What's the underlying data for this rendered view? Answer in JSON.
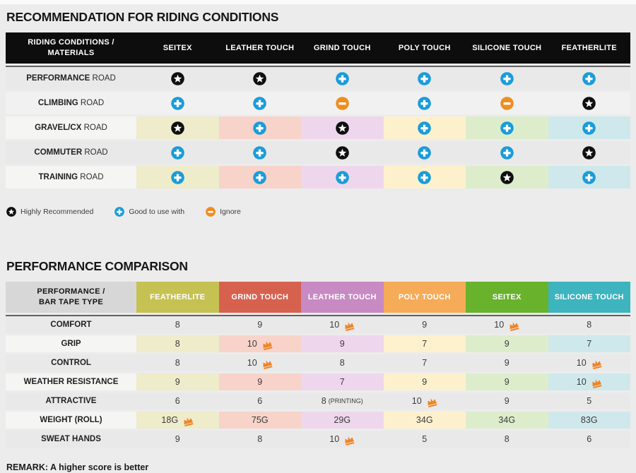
{
  "page": {
    "title1": "RECOMMENDATION FOR RIDING CONDITIONS",
    "title2": "PERFORMANCE COMPARISON",
    "remark": "REMARK: A higher score is better"
  },
  "colors": {
    "star_black": "#0f0f0f",
    "plus_blue": "#1b9cd9",
    "minus_orange": "#ef8d21",
    "crown_orange": "#f08426",
    "row_dark": "#e9e9e9",
    "row_light": "#f1f1f1",
    "label_light": "#f5f5f4",
    "tints": [
      "#eeecca",
      "#f8d3c9",
      "#eed7ec",
      "#fdf1cd",
      "#ddedcc",
      "#cfe8eb"
    ]
  },
  "legend": [
    {
      "icon": "star",
      "label": "Highly Recommended"
    },
    {
      "icon": "plus",
      "label": "Good to use with"
    },
    {
      "icon": "minus",
      "label": "Ignore"
    }
  ],
  "icon_meanings": {
    "star": "Highly Recommended",
    "plus": "Good to use with",
    "minus": "Ignore"
  },
  "chart_data": [
    {
      "type": "table",
      "title": "RECOMMENDATION FOR RIDING CONDITIONS",
      "corner_label": "RIDING CONDITIONS /\nMATERIALS",
      "columns": [
        "SEITEX",
        "LEATHER TOUCH",
        "GRIND TOUCH",
        "POLY TOUCH",
        "SILICONE TOUCH",
        "FEATHERLITE"
      ],
      "rows": [
        {
          "label": "PERFORMANCE",
          "suffix": "ROAD",
          "tinted": false,
          "light": false,
          "cells": [
            "star",
            "star",
            "plus",
            "plus",
            "plus",
            "plus"
          ]
        },
        {
          "label": "CLIMBING",
          "suffix": "ROAD",
          "tinted": false,
          "light": true,
          "cells": [
            "plus",
            "plus",
            "minus",
            "plus",
            "minus",
            "star"
          ]
        },
        {
          "label": "GRAVEL/CX",
          "suffix": "ROAD",
          "tinted": true,
          "light": false,
          "cells": [
            "star",
            "plus",
            "star",
            "plus",
            "plus",
            "plus"
          ]
        },
        {
          "label": "COMMUTER",
          "suffix": "ROAD",
          "tinted": false,
          "light": false,
          "cells": [
            "plus",
            "plus",
            "star",
            "plus",
            "plus",
            "star"
          ]
        },
        {
          "label": "TRAINING",
          "suffix": "ROAD",
          "tinted": true,
          "light": false,
          "cells": [
            "plus",
            "plus",
            "plus",
            "plus",
            "star",
            "plus"
          ]
        }
      ]
    },
    {
      "type": "table",
      "title": "PERFORMANCE COMPARISON",
      "corner_label": "PERFORMANCE /\nBAR TAPE TYPE",
      "columns": [
        {
          "label": "FEATHERLITE",
          "color": "#c6c153"
        },
        {
          "label": "GRIND TOUCH",
          "color": "#d7614f"
        },
        {
          "label": "LEATHER TOUCH",
          "color": "#c78ac3"
        },
        {
          "label": "POLY TOUCH",
          "color": "#f6ab58"
        },
        {
          "label": "SEITEX",
          "color": "#69b22c"
        },
        {
          "label": "SILICONE TOUCH",
          "color": "#3db4be"
        }
      ],
      "rows": [
        {
          "label": "COMFORT",
          "tinted": false,
          "cells": [
            {
              "v": "8"
            },
            {
              "v": "9"
            },
            {
              "v": "10",
              "crown": true
            },
            {
              "v": "9"
            },
            {
              "v": "10",
              "crown": true
            },
            {
              "v": "8"
            }
          ]
        },
        {
          "label": "GRIP",
          "tinted": true,
          "cells": [
            {
              "v": "8"
            },
            {
              "v": "10",
              "crown": true
            },
            {
              "v": "9"
            },
            {
              "v": "7"
            },
            {
              "v": "9"
            },
            {
              "v": "7"
            }
          ]
        },
        {
          "label": "CONTROL",
          "tinted": false,
          "cells": [
            {
              "v": "8"
            },
            {
              "v": "10",
              "crown": true
            },
            {
              "v": "8"
            },
            {
              "v": "7"
            },
            {
              "v": "9"
            },
            {
              "v": "10",
              "crown": true
            }
          ]
        },
        {
          "label": "WEATHER RESISTANCE",
          "tinted": true,
          "cells": [
            {
              "v": "9"
            },
            {
              "v": "9"
            },
            {
              "v": "7"
            },
            {
              "v": "9"
            },
            {
              "v": "9"
            },
            {
              "v": "10",
              "crown": true
            }
          ]
        },
        {
          "label": "ATTRACTIVE",
          "tinted": false,
          "cells": [
            {
              "v": "6"
            },
            {
              "v": "6"
            },
            {
              "v": "8",
              "note": "(PRINTING)"
            },
            {
              "v": "10",
              "crown": true
            },
            {
              "v": "9"
            },
            {
              "v": "5"
            }
          ]
        },
        {
          "label": "WEIGHT (ROLL)",
          "tinted": true,
          "cells": [
            {
              "v": "18G",
              "crown": true
            },
            {
              "v": "75G"
            },
            {
              "v": "29G"
            },
            {
              "v": "34G"
            },
            {
              "v": "34G"
            },
            {
              "v": "83G"
            }
          ]
        },
        {
          "label": "SWEAT HANDS",
          "tinted": false,
          "cells": [
            {
              "v": "9"
            },
            {
              "v": "8"
            },
            {
              "v": "10",
              "crown": true
            },
            {
              "v": "5"
            },
            {
              "v": "8"
            },
            {
              "v": "6"
            }
          ]
        }
      ]
    }
  ]
}
